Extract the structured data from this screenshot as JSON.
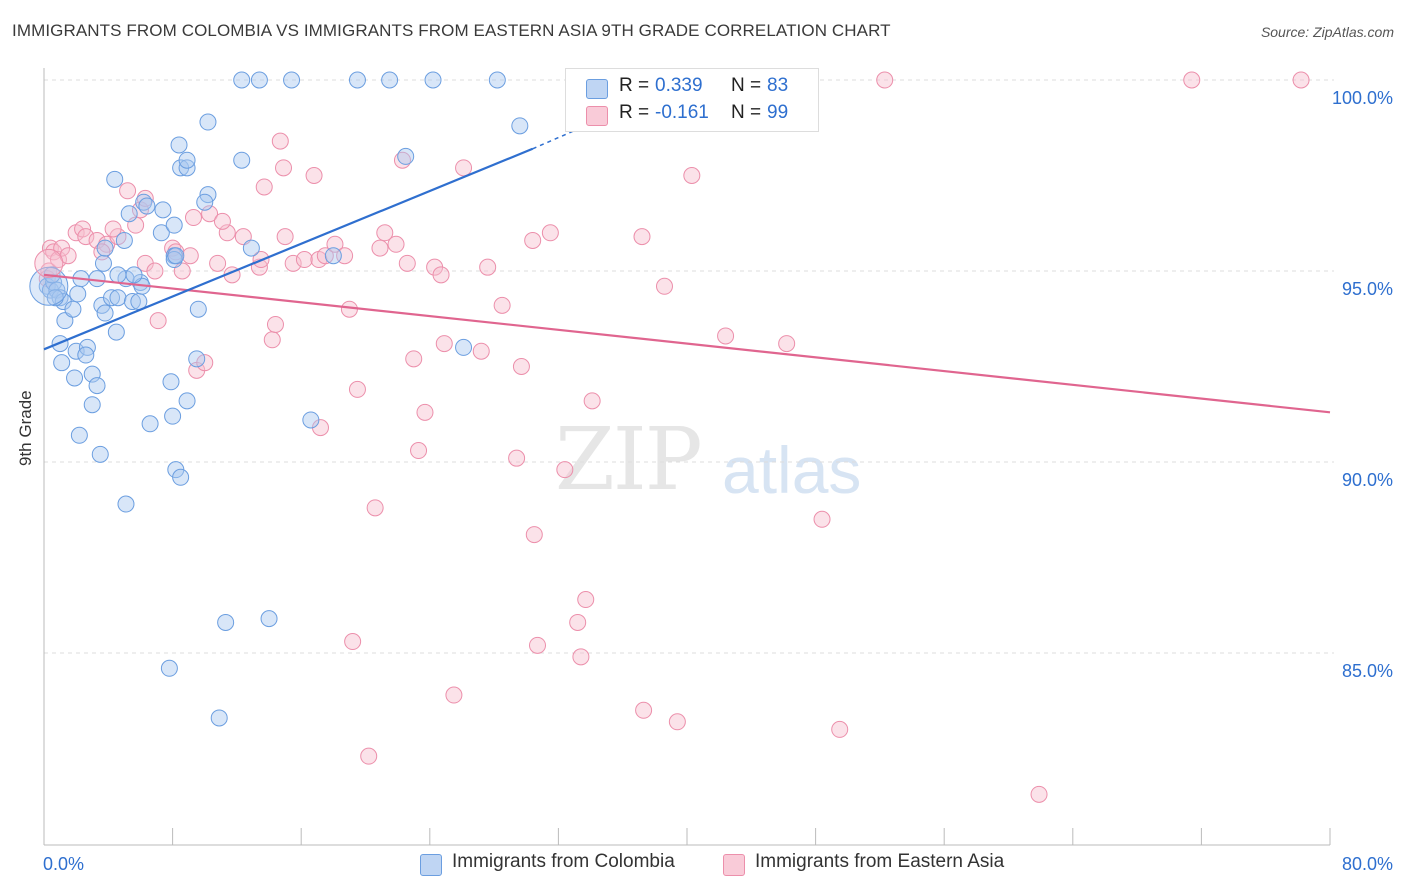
{
  "header": {
    "title": "IMMIGRANTS FROM COLOMBIA VS IMMIGRANTS FROM EASTERN ASIA 9TH GRADE CORRELATION CHART",
    "source": "Source: ZipAtlas.com"
  },
  "watermark": {
    "zip": "ZIP",
    "atlas": "atlas"
  },
  "legend": {
    "r_label": "R =",
    "n_label": "N =",
    "series1": {
      "r": "0.339",
      "n": "83"
    },
    "series2": {
      "r": "-0.161",
      "n": "99"
    }
  },
  "bottom_legend": {
    "series1": "Immigrants from Colombia",
    "series2": "Immigrants from Eastern Asia"
  },
  "colors": {
    "blue_fill": "#a9c8f0",
    "blue_stroke": "#6b9ee0",
    "blue_line": "#2f6fcf",
    "pink_fill": "#f7bfcf",
    "pink_stroke": "#ec8fab",
    "pink_line": "#e0658f",
    "tick_label": "#2e6fcf",
    "grid": "#dddddd"
  },
  "chart_data": {
    "type": "scatter",
    "title": "IMMIGRANTS FROM COLOMBIA VS IMMIGRANTS FROM EASTERN ASIA 9TH GRADE CORRELATION CHART",
    "ylabel": "9th Grade",
    "xlabel": "",
    "xlim": [
      0,
      80
    ],
    "ylim": [
      80.5,
      100.4
    ],
    "x_tick_labels": [
      "0.0%",
      "80.0%"
    ],
    "y_ticks": [
      85,
      90,
      95,
      100
    ],
    "y_tick_labels": [
      "85.0%",
      "90.0%",
      "95.0%",
      "100.0%"
    ],
    "grid": true,
    "legend_position": "top-center",
    "series": [
      {
        "name": "Immigrants from Colombia",
        "r": 0.339,
        "n": 83,
        "trend": [
          [
            0,
            92.95
          ],
          [
            30.4,
            98.2
          ]
        ],
        "trend_dashed": [
          [
            30.4,
            98.2
          ],
          [
            34.5,
            98.95
          ]
        ],
        "points": [
          [
            0.2,
            94.6
          ],
          [
            0.4,
            94.5
          ],
          [
            0.6,
            94.7
          ],
          [
            0.8,
            94.5
          ],
          [
            1.0,
            94.3
          ],
          [
            1.2,
            94.2
          ],
          [
            1.0,
            93.1
          ],
          [
            1.3,
            93.7
          ],
          [
            1.1,
            92.6
          ],
          [
            1.9,
            92.2
          ],
          [
            1.8,
            94.0
          ],
          [
            2.1,
            94.4
          ],
          [
            2.0,
            92.9
          ],
          [
            2.7,
            93.0
          ],
          [
            2.6,
            92.8
          ],
          [
            3.0,
            92.3
          ],
          [
            3.3,
            92.0
          ],
          [
            3.0,
            91.5
          ],
          [
            2.2,
            90.7
          ],
          [
            3.5,
            90.2
          ],
          [
            3.6,
            94.1
          ],
          [
            4.2,
            94.3
          ],
          [
            3.8,
            93.9
          ],
          [
            4.5,
            93.4
          ],
          [
            4.6,
            94.3
          ],
          [
            5.5,
            94.2
          ],
          [
            5.9,
            94.2
          ],
          [
            6.0,
            94.7
          ],
          [
            6.1,
            94.6
          ],
          [
            2.3,
            94.8
          ],
          [
            3.3,
            94.8
          ],
          [
            5.1,
            94.8
          ],
          [
            5.6,
            94.9
          ],
          [
            4.6,
            94.9
          ],
          [
            3.7,
            95.2
          ],
          [
            3.8,
            95.6
          ],
          [
            5.0,
            95.8
          ],
          [
            7.3,
            96.0
          ],
          [
            8.1,
            95.4
          ],
          [
            8.1,
            95.3
          ],
          [
            9.6,
            94.0
          ],
          [
            9.5,
            92.7
          ],
          [
            7.9,
            92.1
          ],
          [
            8.9,
            91.6
          ],
          [
            8.0,
            91.2
          ],
          [
            6.6,
            91.0
          ],
          [
            8.2,
            89.8
          ],
          [
            8.5,
            89.6
          ],
          [
            5.1,
            88.9
          ],
          [
            8.2,
            95.4
          ],
          [
            8.1,
            96.2
          ],
          [
            7.4,
            96.6
          ],
          [
            6.2,
            96.8
          ],
          [
            6.4,
            96.7
          ],
          [
            5.3,
            96.5
          ],
          [
            4.4,
            97.4
          ],
          [
            8.5,
            97.7
          ],
          [
            8.9,
            97.7
          ],
          [
            8.4,
            98.3
          ],
          [
            8.9,
            97.9
          ],
          [
            10.2,
            97.0
          ],
          [
            10.0,
            96.8
          ],
          [
            10.2,
            98.9
          ],
          [
            12.3,
            97.9
          ],
          [
            12.9,
            95.6
          ],
          [
            12.3,
            100.0
          ],
          [
            13.4,
            100.0
          ],
          [
            15.4,
            100.0
          ],
          [
            19.5,
            100.0
          ],
          [
            21.5,
            100.0
          ],
          [
            24.2,
            100.0
          ],
          [
            28.2,
            100.0
          ],
          [
            29.6,
            98.8
          ],
          [
            22.5,
            98.0
          ],
          [
            18.0,
            95.4
          ],
          [
            16.6,
            91.1
          ],
          [
            26.1,
            93.0
          ],
          [
            11.3,
            85.8
          ],
          [
            14.0,
            85.9
          ],
          [
            7.8,
            84.6
          ],
          [
            10.9,
            83.3
          ],
          [
            0.5,
            94.9
          ],
          [
            0.7,
            94.3
          ]
        ]
      },
      {
        "name": "Immigrants from Eastern Asia",
        "r": -0.161,
        "n": 99,
        "trend": [
          [
            0,
            94.9
          ],
          [
            80,
            91.3
          ]
        ],
        "points": [
          [
            0.3,
            95.0
          ],
          [
            0.4,
            95.6
          ],
          [
            0.6,
            95.5
          ],
          [
            0.9,
            95.3
          ],
          [
            1.1,
            95.6
          ],
          [
            1.5,
            95.4
          ],
          [
            2.0,
            96.0
          ],
          [
            2.4,
            96.1
          ],
          [
            2.6,
            95.9
          ],
          [
            3.3,
            95.8
          ],
          [
            3.9,
            95.7
          ],
          [
            4.6,
            95.9
          ],
          [
            4.3,
            96.1
          ],
          [
            5.2,
            97.1
          ],
          [
            5.7,
            96.2
          ],
          [
            6.0,
            96.6
          ],
          [
            6.3,
            96.9
          ],
          [
            6.3,
            95.2
          ],
          [
            6.9,
            95.0
          ],
          [
            7.1,
            93.7
          ],
          [
            8.0,
            95.6
          ],
          [
            8.2,
            95.5
          ],
          [
            8.6,
            95.0
          ],
          [
            9.1,
            95.4
          ],
          [
            9.3,
            96.4
          ],
          [
            9.5,
            92.4
          ],
          [
            10.0,
            92.6
          ],
          [
            10.3,
            96.5
          ],
          [
            10.8,
            95.2
          ],
          [
            11.4,
            96.0
          ],
          [
            11.1,
            96.3
          ],
          [
            11.7,
            94.9
          ],
          [
            12.4,
            95.9
          ],
          [
            13.4,
            95.1
          ],
          [
            13.5,
            95.3
          ],
          [
            13.7,
            97.2
          ],
          [
            14.2,
            93.2
          ],
          [
            14.4,
            93.6
          ],
          [
            14.7,
            98.4
          ],
          [
            14.9,
            97.7
          ],
          [
            15.0,
            95.9
          ],
          [
            15.5,
            95.2
          ],
          [
            16.2,
            95.3
          ],
          [
            16.8,
            97.5
          ],
          [
            17.1,
            95.3
          ],
          [
            17.5,
            95.4
          ],
          [
            18.1,
            95.7
          ],
          [
            18.7,
            95.4
          ],
          [
            19.0,
            94.0
          ],
          [
            19.5,
            91.9
          ],
          [
            17.2,
            90.9
          ],
          [
            19.2,
            85.3
          ],
          [
            20.2,
            82.3
          ],
          [
            20.6,
            88.8
          ],
          [
            20.9,
            95.6
          ],
          [
            21.2,
            96.0
          ],
          [
            21.9,
            95.7
          ],
          [
            22.3,
            97.9
          ],
          [
            22.6,
            95.2
          ],
          [
            23.0,
            92.7
          ],
          [
            23.3,
            90.3
          ],
          [
            23.7,
            91.3
          ],
          [
            24.3,
            95.1
          ],
          [
            24.7,
            94.9
          ],
          [
            24.9,
            93.1
          ],
          [
            25.5,
            83.9
          ],
          [
            26.1,
            97.7
          ],
          [
            27.2,
            92.9
          ],
          [
            27.6,
            95.1
          ],
          [
            28.5,
            94.1
          ],
          [
            29.4,
            90.1
          ],
          [
            29.7,
            92.5
          ],
          [
            30.4,
            95.8
          ],
          [
            30.5,
            88.1
          ],
          [
            30.7,
            85.2
          ],
          [
            31.5,
            96.0
          ],
          [
            32.4,
            89.8
          ],
          [
            33.2,
            85.8
          ],
          [
            33.4,
            84.9
          ],
          [
            33.7,
            86.4
          ],
          [
            34.1,
            91.6
          ],
          [
            35.8,
            100.0
          ],
          [
            37.3,
            83.5
          ],
          [
            37.2,
            95.9
          ],
          [
            38.6,
            94.6
          ],
          [
            39.3,
            100.0
          ],
          [
            39.4,
            83.2
          ],
          [
            40.3,
            97.5
          ],
          [
            42.7,
            100.0
          ],
          [
            42.4,
            93.3
          ],
          [
            46.2,
            93.1
          ],
          [
            48.4,
            88.5
          ],
          [
            49.5,
            83.0
          ],
          [
            52.3,
            100.0
          ],
          [
            61.9,
            81.3
          ],
          [
            71.4,
            100.0
          ],
          [
            78.2,
            100.0
          ],
          [
            3.6,
            95.5
          ],
          [
            0.2,
            94.8
          ]
        ]
      }
    ]
  }
}
